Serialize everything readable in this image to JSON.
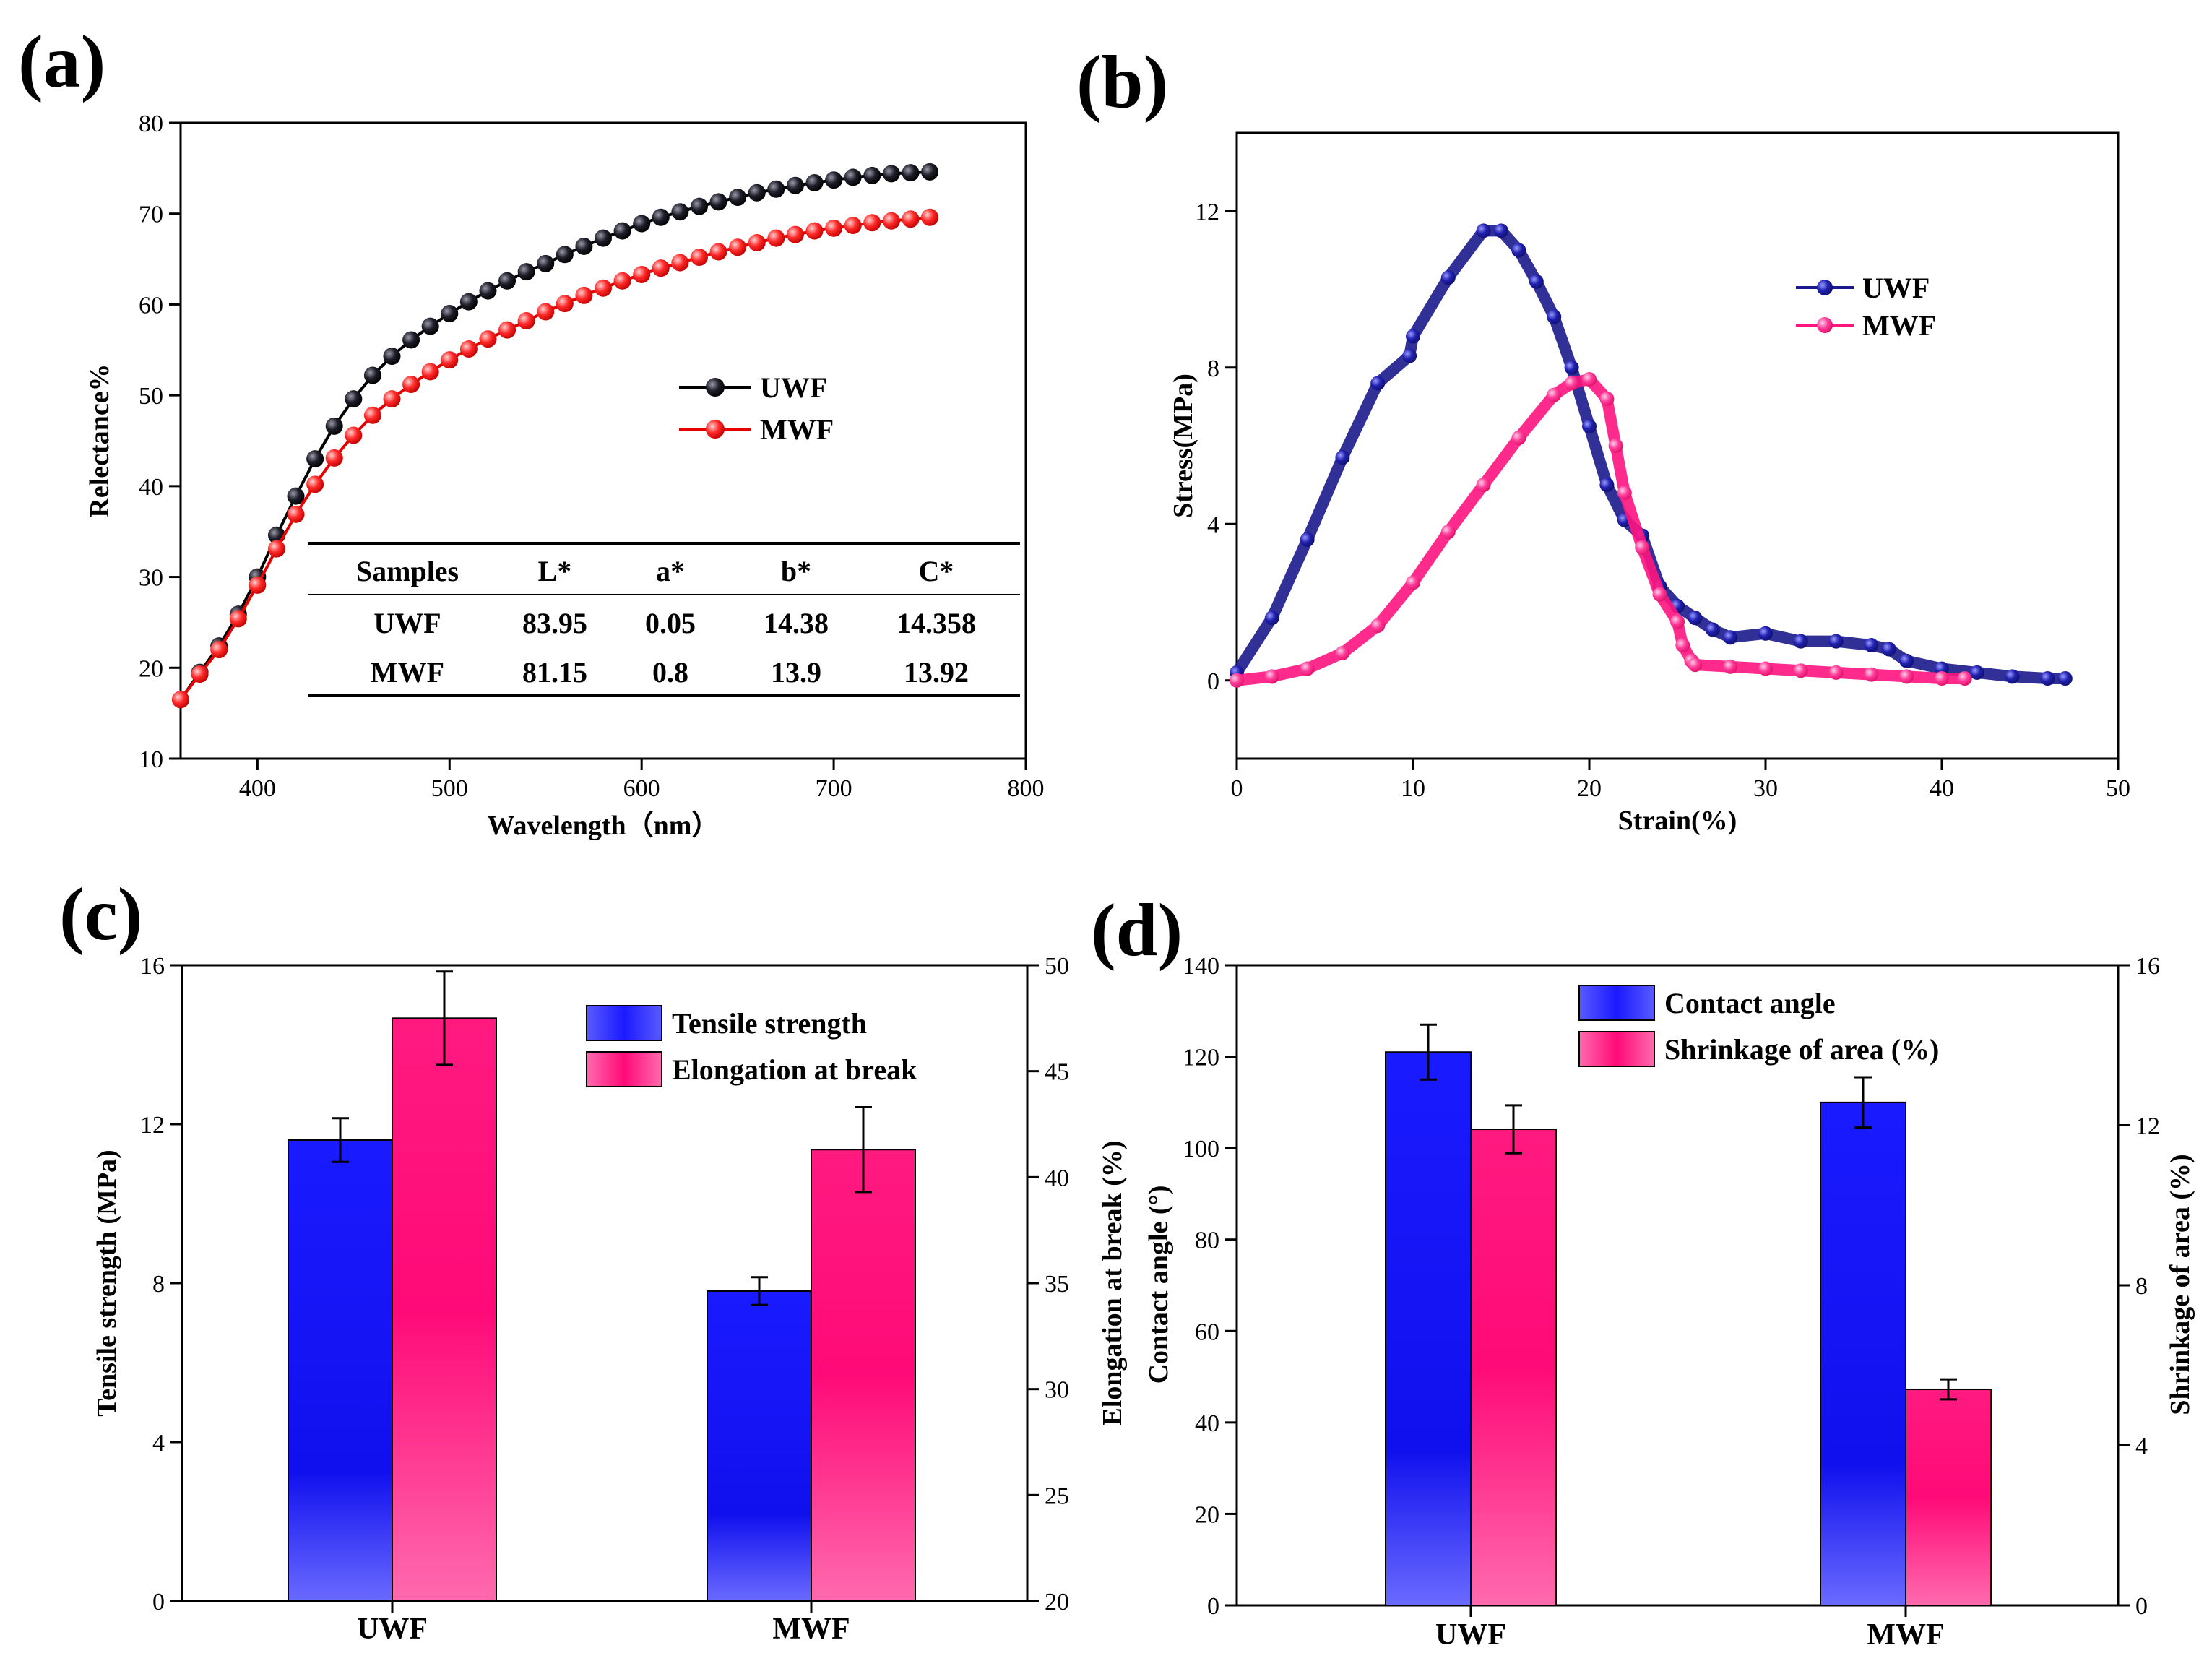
{
  "chart_data": [
    {
      "id": "a",
      "panel_label": "(a)",
      "type": "line",
      "xlabel": "Wavelength（nm）",
      "ylabel": "Relectance%",
      "xlim": [
        360,
        800
      ],
      "ylim": [
        10,
        80
      ],
      "xticks": [
        400,
        500,
        600,
        700,
        800
      ],
      "yticks": [
        10,
        20,
        30,
        40,
        50,
        60,
        70,
        80
      ],
      "series": [
        {
          "name": "UWF",
          "color": "#000000",
          "fill": "#1a1a1a",
          "x": [
            360,
            370,
            380,
            390,
            400,
            410,
            420,
            430,
            440,
            450,
            460,
            470,
            480,
            490,
            500,
            510,
            520,
            530,
            540,
            550,
            560,
            570,
            580,
            590,
            600,
            610,
            620,
            630,
            640,
            650,
            660,
            670,
            680,
            690,
            700,
            710,
            720,
            730,
            740,
            750
          ],
          "y": [
            16.5,
            19.5,
            22.4,
            25.9,
            30.0,
            34.6,
            38.9,
            43.0,
            46.6,
            49.6,
            52.2,
            54.3,
            56.1,
            57.6,
            59.0,
            60.3,
            61.5,
            62.6,
            63.6,
            64.5,
            65.5,
            66.4,
            67.3,
            68.1,
            68.9,
            69.6,
            70.2,
            70.8,
            71.3,
            71.8,
            72.3,
            72.7,
            73.1,
            73.4,
            73.7,
            74.0,
            74.2,
            74.4,
            74.5,
            74.6
          ]
        },
        {
          "name": "MWF",
          "color": "#e60000",
          "fill": "#ff2020",
          "x": [
            360,
            370,
            380,
            390,
            400,
            410,
            420,
            430,
            440,
            450,
            460,
            470,
            480,
            490,
            500,
            510,
            520,
            530,
            540,
            550,
            560,
            570,
            580,
            590,
            600,
            610,
            620,
            630,
            640,
            650,
            660,
            670,
            680,
            690,
            700,
            710,
            720,
            730,
            740,
            750
          ],
          "y": [
            16.5,
            19.3,
            22.0,
            25.4,
            29.1,
            33.1,
            36.9,
            40.2,
            43.1,
            45.6,
            47.8,
            49.6,
            51.2,
            52.6,
            53.9,
            55.1,
            56.2,
            57.2,
            58.2,
            59.2,
            60.1,
            61.0,
            61.8,
            62.6,
            63.3,
            64.0,
            64.6,
            65.2,
            65.8,
            66.3,
            66.8,
            67.3,
            67.7,
            68.1,
            68.4,
            68.7,
            69.0,
            69.2,
            69.4,
            69.6
          ]
        }
      ],
      "legend": [
        "UWF",
        "MWF"
      ],
      "table": {
        "headers": [
          "Samples",
          "L*",
          "a*",
          "b*",
          "C*"
        ],
        "rows": [
          [
            "UWF",
            "83.95",
            "0.05",
            "14.38",
            "14.358"
          ],
          [
            "MWF",
            "81.15",
            "0.8",
            "13.9",
            "13.92"
          ]
        ]
      }
    },
    {
      "id": "b",
      "panel_label": "(b)",
      "type": "scatter",
      "xlabel": "Strain(%)",
      "ylabel": "Stress(MPa)",
      "xlim": [
        0,
        50
      ],
      "ylim": [
        -2,
        14
      ],
      "xticks": [
        0,
        10,
        20,
        30,
        40,
        50
      ],
      "yticks": [
        0,
        4,
        8,
        12
      ],
      "series": [
        {
          "name": "UWF",
          "color": "#1a1a8c",
          "fill": "#2a2ab0",
          "x": [
            0,
            2,
            4,
            6,
            8,
            9.8,
            10,
            12,
            14,
            15,
            16,
            17,
            18,
            19,
            20,
            21,
            22,
            23,
            24,
            25,
            26,
            27,
            28,
            30,
            32,
            34,
            36,
            37,
            38,
            40,
            42,
            44,
            46,
            47
          ],
          "y": [
            0.2,
            1.6,
            3.6,
            5.7,
            7.6,
            8.3,
            8.8,
            10.3,
            11.5,
            11.5,
            11.0,
            10.2,
            9.3,
            8.0,
            6.5,
            5.0,
            4.1,
            3.7,
            2.4,
            1.9,
            1.6,
            1.3,
            1.1,
            1.2,
            1.0,
            1.0,
            0.9,
            0.8,
            0.5,
            0.3,
            0.2,
            0.1,
            0.05,
            0.05
          ]
        },
        {
          "name": "MWF",
          "color": "#ff1480",
          "fill": "#ff3c9a",
          "x": [
            0,
            2,
            4,
            6,
            8,
            10,
            12,
            14,
            16,
            18,
            19,
            20,
            21,
            21.5,
            22,
            23,
            24,
            25,
            25.3,
            25.8,
            26,
            28,
            30,
            32,
            34,
            36,
            38,
            40,
            41.3
          ],
          "y": [
            0.0,
            0.1,
            0.3,
            0.7,
            1.4,
            2.5,
            3.8,
            5.0,
            6.2,
            7.3,
            7.6,
            7.7,
            7.2,
            6.0,
            4.8,
            3.4,
            2.2,
            1.5,
            0.9,
            0.5,
            0.4,
            0.35,
            0.3,
            0.25,
            0.2,
            0.15,
            0.1,
            0.05,
            0.05
          ]
        }
      ],
      "legend": [
        "UWF",
        "MWF"
      ]
    },
    {
      "id": "c",
      "panel_label": "(c)",
      "type": "bar",
      "categories": [
        "UWF",
        "MWF"
      ],
      "ylabel": "Tensile strength (MPa)",
      "ylim": [
        0,
        16
      ],
      "yticks": [
        0,
        4,
        8,
        12,
        16
      ],
      "y2label": "Elongation at break (%)",
      "y2lim": [
        20,
        50
      ],
      "y2ticks": [
        20,
        25,
        30,
        35,
        40,
        45,
        50
      ],
      "series": [
        {
          "name": "Tensile strength",
          "axis": "left",
          "color": "#1e1eff",
          "values": [
            11.6,
            7.8
          ],
          "errors": [
            0.55,
            0.35
          ]
        },
        {
          "name": "Elongation at break",
          "axis": "right",
          "color": "#ff0a78",
          "values": [
            47.5,
            41.3
          ],
          "errors": [
            2.2,
            2.0
          ]
        }
      ]
    },
    {
      "id": "d",
      "panel_label": "(d)",
      "type": "bar",
      "categories": [
        "UWF",
        "MWF"
      ],
      "ylabel": "Contact angle (°)",
      "ylim": [
        0,
        140
      ],
      "yticks": [
        0,
        20,
        40,
        60,
        80,
        100,
        120,
        140
      ],
      "y2label": "Shrinkage of area (%)",
      "y2lim": [
        0,
        16
      ],
      "y2ticks": [
        0,
        4,
        8,
        12,
        16
      ],
      "series": [
        {
          "name": "Contact angle",
          "axis": "left",
          "color": "#1e1eff",
          "values": [
            121,
            110
          ],
          "errors": [
            6,
            5.5
          ]
        },
        {
          "name": "Shrinkage of area (%)",
          "axis": "right",
          "color": "#ff0a78",
          "values": [
            11.9,
            5.4
          ],
          "errors": [
            0.6,
            0.25
          ]
        }
      ]
    }
  ]
}
